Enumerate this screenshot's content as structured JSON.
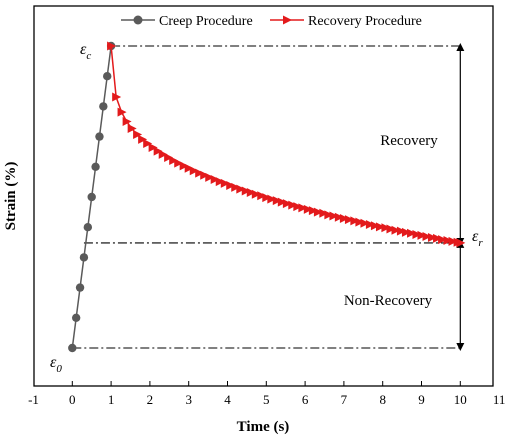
{
  "chart_data": {
    "type": "line",
    "xlabel": "Time (s)",
    "ylabel": "Strain (%)",
    "xlim": [
      -1,
      11
    ],
    "x_ticks": [
      "-1",
      "0",
      "1",
      "2",
      "3",
      "4",
      "5",
      "6",
      "7",
      "8",
      "9",
      "10",
      "11"
    ],
    "legend_position": "top",
    "series": [
      {
        "name": "Creep Procedure",
        "color": "#5a5a5a",
        "marker": "circle",
        "x": [
          0,
          0.1,
          0.2,
          0.3,
          0.4,
          0.5,
          0.6,
          0.7,
          0.8,
          0.9,
          1.0
        ],
        "y": [
          0,
          0.1,
          0.2,
          0.3,
          0.4,
          0.5,
          0.6,
          0.7,
          0.8,
          0.9,
          1.0
        ]
      },
      {
        "name": "Recovery Procedure",
        "color": "#e31a1c",
        "marker": "triangle-right",
        "x": [
          1.0,
          1.13,
          1.27,
          1.4,
          1.53,
          1.67,
          1.8,
          1.93,
          2.07,
          2.2,
          2.33,
          2.47,
          2.6,
          2.73,
          2.87,
          3.0,
          3.13,
          3.27,
          3.4,
          3.53,
          3.67,
          3.8,
          3.93,
          4.07,
          4.2,
          4.33,
          4.47,
          4.6,
          4.73,
          4.87,
          5.0,
          5.13,
          5.27,
          5.4,
          5.53,
          5.67,
          5.8,
          5.93,
          6.07,
          6.2,
          6.33,
          6.47,
          6.6,
          6.73,
          6.87,
          7.0,
          7.13,
          7.27,
          7.4,
          7.53,
          7.67,
          7.8,
          7.93,
          8.07,
          8.2,
          8.33,
          8.47,
          8.6,
          8.73,
          8.87,
          9.0,
          9.13,
          9.27,
          9.4,
          9.53,
          9.67,
          9.8,
          9.93,
          10.0
        ],
        "y": [
          1.0,
          0.831,
          0.781,
          0.75,
          0.727,
          0.707,
          0.691,
          0.677,
          0.664,
          0.652,
          0.641,
          0.631,
          0.621,
          0.612,
          0.603,
          0.595,
          0.587,
          0.579,
          0.572,
          0.565,
          0.558,
          0.551,
          0.545,
          0.538,
          0.532,
          0.526,
          0.52,
          0.515,
          0.509,
          0.504,
          0.498,
          0.493,
          0.488,
          0.483,
          0.478,
          0.473,
          0.468,
          0.464,
          0.459,
          0.455,
          0.45,
          0.446,
          0.441,
          0.437,
          0.433,
          0.429,
          0.425,
          0.421,
          0.417,
          0.413,
          0.409,
          0.405,
          0.401,
          0.398,
          0.394,
          0.39,
          0.387,
          0.383,
          0.38,
          0.376,
          0.373,
          0.369,
          0.366,
          0.363,
          0.359,
          0.356,
          0.353,
          0.35,
          0.348
        ]
      }
    ],
    "reference_lines": [
      {
        "name": "epsilon-c",
        "y": 1.0,
        "x_range": [
          1.0,
          10.0
        ]
      },
      {
        "name": "epsilon-r",
        "y": 0.348,
        "x_range": [
          0.3,
          10.0
        ]
      },
      {
        "name": "epsilon-0",
        "y": 0.0,
        "x_range": [
          0.0,
          10.0
        ]
      }
    ],
    "annotations": {
      "epsilon_c": {
        "symbol": "ε",
        "sub": "c"
      },
      "epsilon_r": {
        "symbol": "ε",
        "sub": "r"
      },
      "epsilon_0": {
        "symbol": "ε",
        "sub": "0"
      },
      "recovery": "Recovery",
      "non_recovery": "Non-Recovery"
    }
  }
}
